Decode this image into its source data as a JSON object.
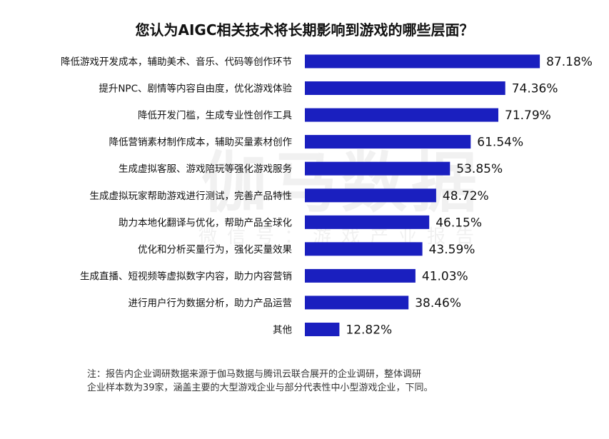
{
  "chart_data": {
    "type": "bar",
    "orientation": "horizontal",
    "title": "您认为AIGC相关技术将长期影响到游戏的哪些层面？",
    "categories": [
      "降低游戏开发成本，辅助美术、音乐、代码等创作环节",
      "提升NPC、剧情等内容自由度，优化游戏体验",
      "降低开发门槛，生成专业性创作工具",
      "降低营销素材制作成本，辅助买量素材创作",
      "生成虚拟客服、游戏陪玩等强化游戏服务",
      "生成虚拟玩家帮助游戏进行测试，完善产品特性",
      "助力本地化翻译与优化，帮助产品全球化",
      "优化和分析买量行为，强化买量效果",
      "生成直播、短视频等虚拟数字内容，助力内容营销",
      "进行用户行为数据分析，助力产品运营",
      "其他"
    ],
    "values": [
      87.18,
      74.36,
      71.79,
      61.54,
      53.85,
      48.72,
      46.15,
      43.59,
      41.03,
      38.46,
      12.82
    ],
    "value_labels": [
      "87.18%",
      "74.36%",
      "71.79%",
      "61.54%",
      "53.85%",
      "48.72%",
      "46.15%",
      "43.59%",
      "41.03%",
      "38.46%",
      "12.82%"
    ],
    "xlim": [
      0,
      100
    ],
    "bar_color": "#1a1fbf",
    "grid": false,
    "legend": "none"
  },
  "watermark": {
    "main": "伽马数据",
    "sub": "微信号：游戏产业报告"
  },
  "note": {
    "line1": "注：报告内企业调研数据来源于伽马数据与腾讯云联合展开的企业调研，整体调研",
    "line2": "企业样本数为39家，涵盖主要的大型游戏企业与部分代表性中小型游戏企业，下同。"
  }
}
